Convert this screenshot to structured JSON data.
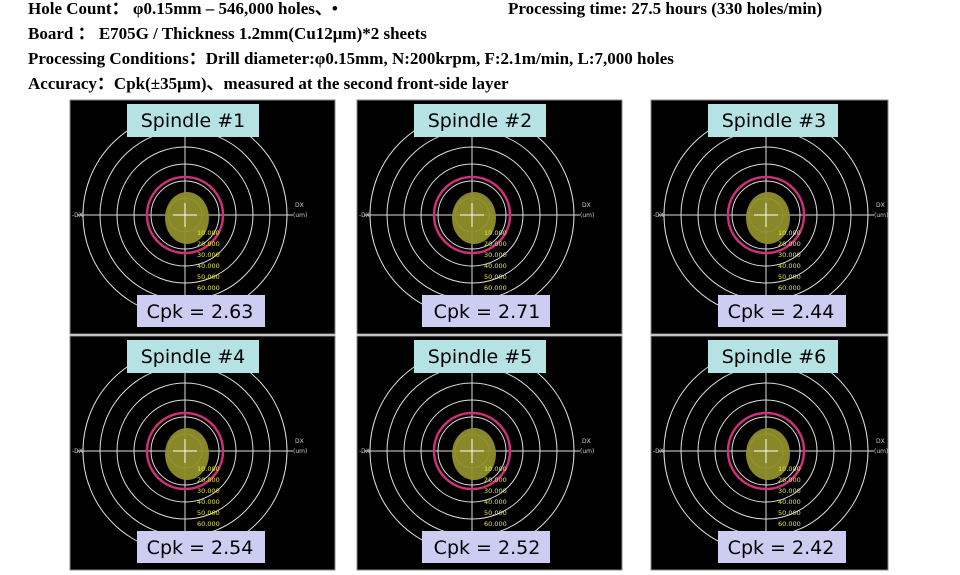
{
  "header": {
    "line1": "Hole Count： φ0.15mm – 546,000 holes、•",
    "line1_right": "Processing time: 27.5 hours (330 holes/min)",
    "line2": "Board ： E705G / Thickness 1.2mm(Cu12μm)*2 sheets",
    "line3": "Processing Conditions：Drill diameter:φ0.15mm, N:200krpm, F:2.1m/min, L:7,000 holes",
    "line4": "Accuracy：Cpk(±35μm)、measured at the second front-side layer"
  },
  "plot_labels": {
    "neg_dx": "-DX",
    "dx": "DX",
    "unit": "(um)",
    "rings": [
      "10.000",
      "20.000",
      "30.000",
      "40.000",
      "50.000",
      "60.000"
    ]
  },
  "panels": [
    {
      "title": "Spindle #1",
      "cpk": "Cpk = 2.63"
    },
    {
      "title": "Spindle #2",
      "cpk": "Cpk = 2.71"
    },
    {
      "title": "Spindle #3",
      "cpk": "Cpk = 2.44"
    },
    {
      "title": "Spindle #4",
      "cpk": "Cpk = 2.54"
    },
    {
      "title": "Spindle #5",
      "cpk": "Cpk = 2.52"
    },
    {
      "title": "Spindle #6",
      "cpk": "Cpk = 2.42"
    }
  ]
}
